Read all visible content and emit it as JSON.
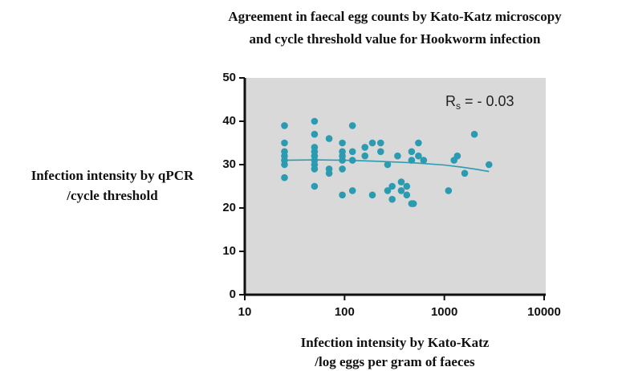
{
  "chart_data": {
    "type": "scatter",
    "title": [
      "Agreement in faecal egg counts by Kato-Katz microscopy",
      "and cycle threshold value for Hookworm infection"
    ],
    "y_label": [
      "Infection intensity by qPCR",
      "/cycle threshold"
    ],
    "x_label": [
      "Infection intensity by Kato-Katz",
      "/log eggs per gram of faeces"
    ],
    "annotation": {
      "base": "R",
      "sub": "s",
      "tail": " = - 0.03"
    },
    "xscale": "log",
    "xlim": [
      10,
      10000
    ],
    "xticks": [
      10,
      100,
      1000,
      10000
    ],
    "ylim": [
      0,
      50
    ],
    "yticks": [
      0,
      10,
      20,
      30,
      40,
      50
    ],
    "background": "#d9d9d9",
    "series": [
      {
        "mode": "markers",
        "color": "#2a9bb0",
        "x": [
          25,
          25,
          25,
          25,
          25,
          25,
          25,
          50,
          50,
          50,
          50,
          50,
          50,
          50,
          50,
          50,
          70,
          70,
          70,
          95,
          95,
          95,
          95,
          95,
          95,
          120,
          120,
          120,
          120,
          160,
          160,
          190,
          190,
          230,
          230,
          270,
          270,
          300,
          300,
          340,
          370,
          370,
          420,
          420,
          470,
          470,
          470,
          490,
          550,
          550,
          620,
          1100,
          1250,
          1350,
          1600,
          2000,
          2800
        ],
        "values": [
          39,
          35,
          33,
          32,
          31,
          30,
          27,
          40,
          37,
          34,
          33,
          32,
          31,
          30,
          29,
          25,
          36,
          29,
          28,
          35,
          33,
          32,
          31,
          29,
          23,
          39,
          33,
          31,
          24,
          34,
          32,
          35,
          23,
          35,
          33,
          30,
          24,
          25,
          22,
          32,
          26,
          24,
          25,
          23,
          33,
          31,
          21,
          21,
          35,
          32,
          31,
          24,
          31,
          32,
          28,
          37,
          30
        ]
      },
      {
        "mode": "line",
        "color": "#2a9bb0",
        "x": [
          25,
          50,
          100,
          200,
          500,
          1000,
          1500,
          2000,
          2800
        ],
        "values": [
          31,
          31.1,
          31,
          30.8,
          30.4,
          29.9,
          29.4,
          29,
          28.4
        ]
      }
    ]
  }
}
